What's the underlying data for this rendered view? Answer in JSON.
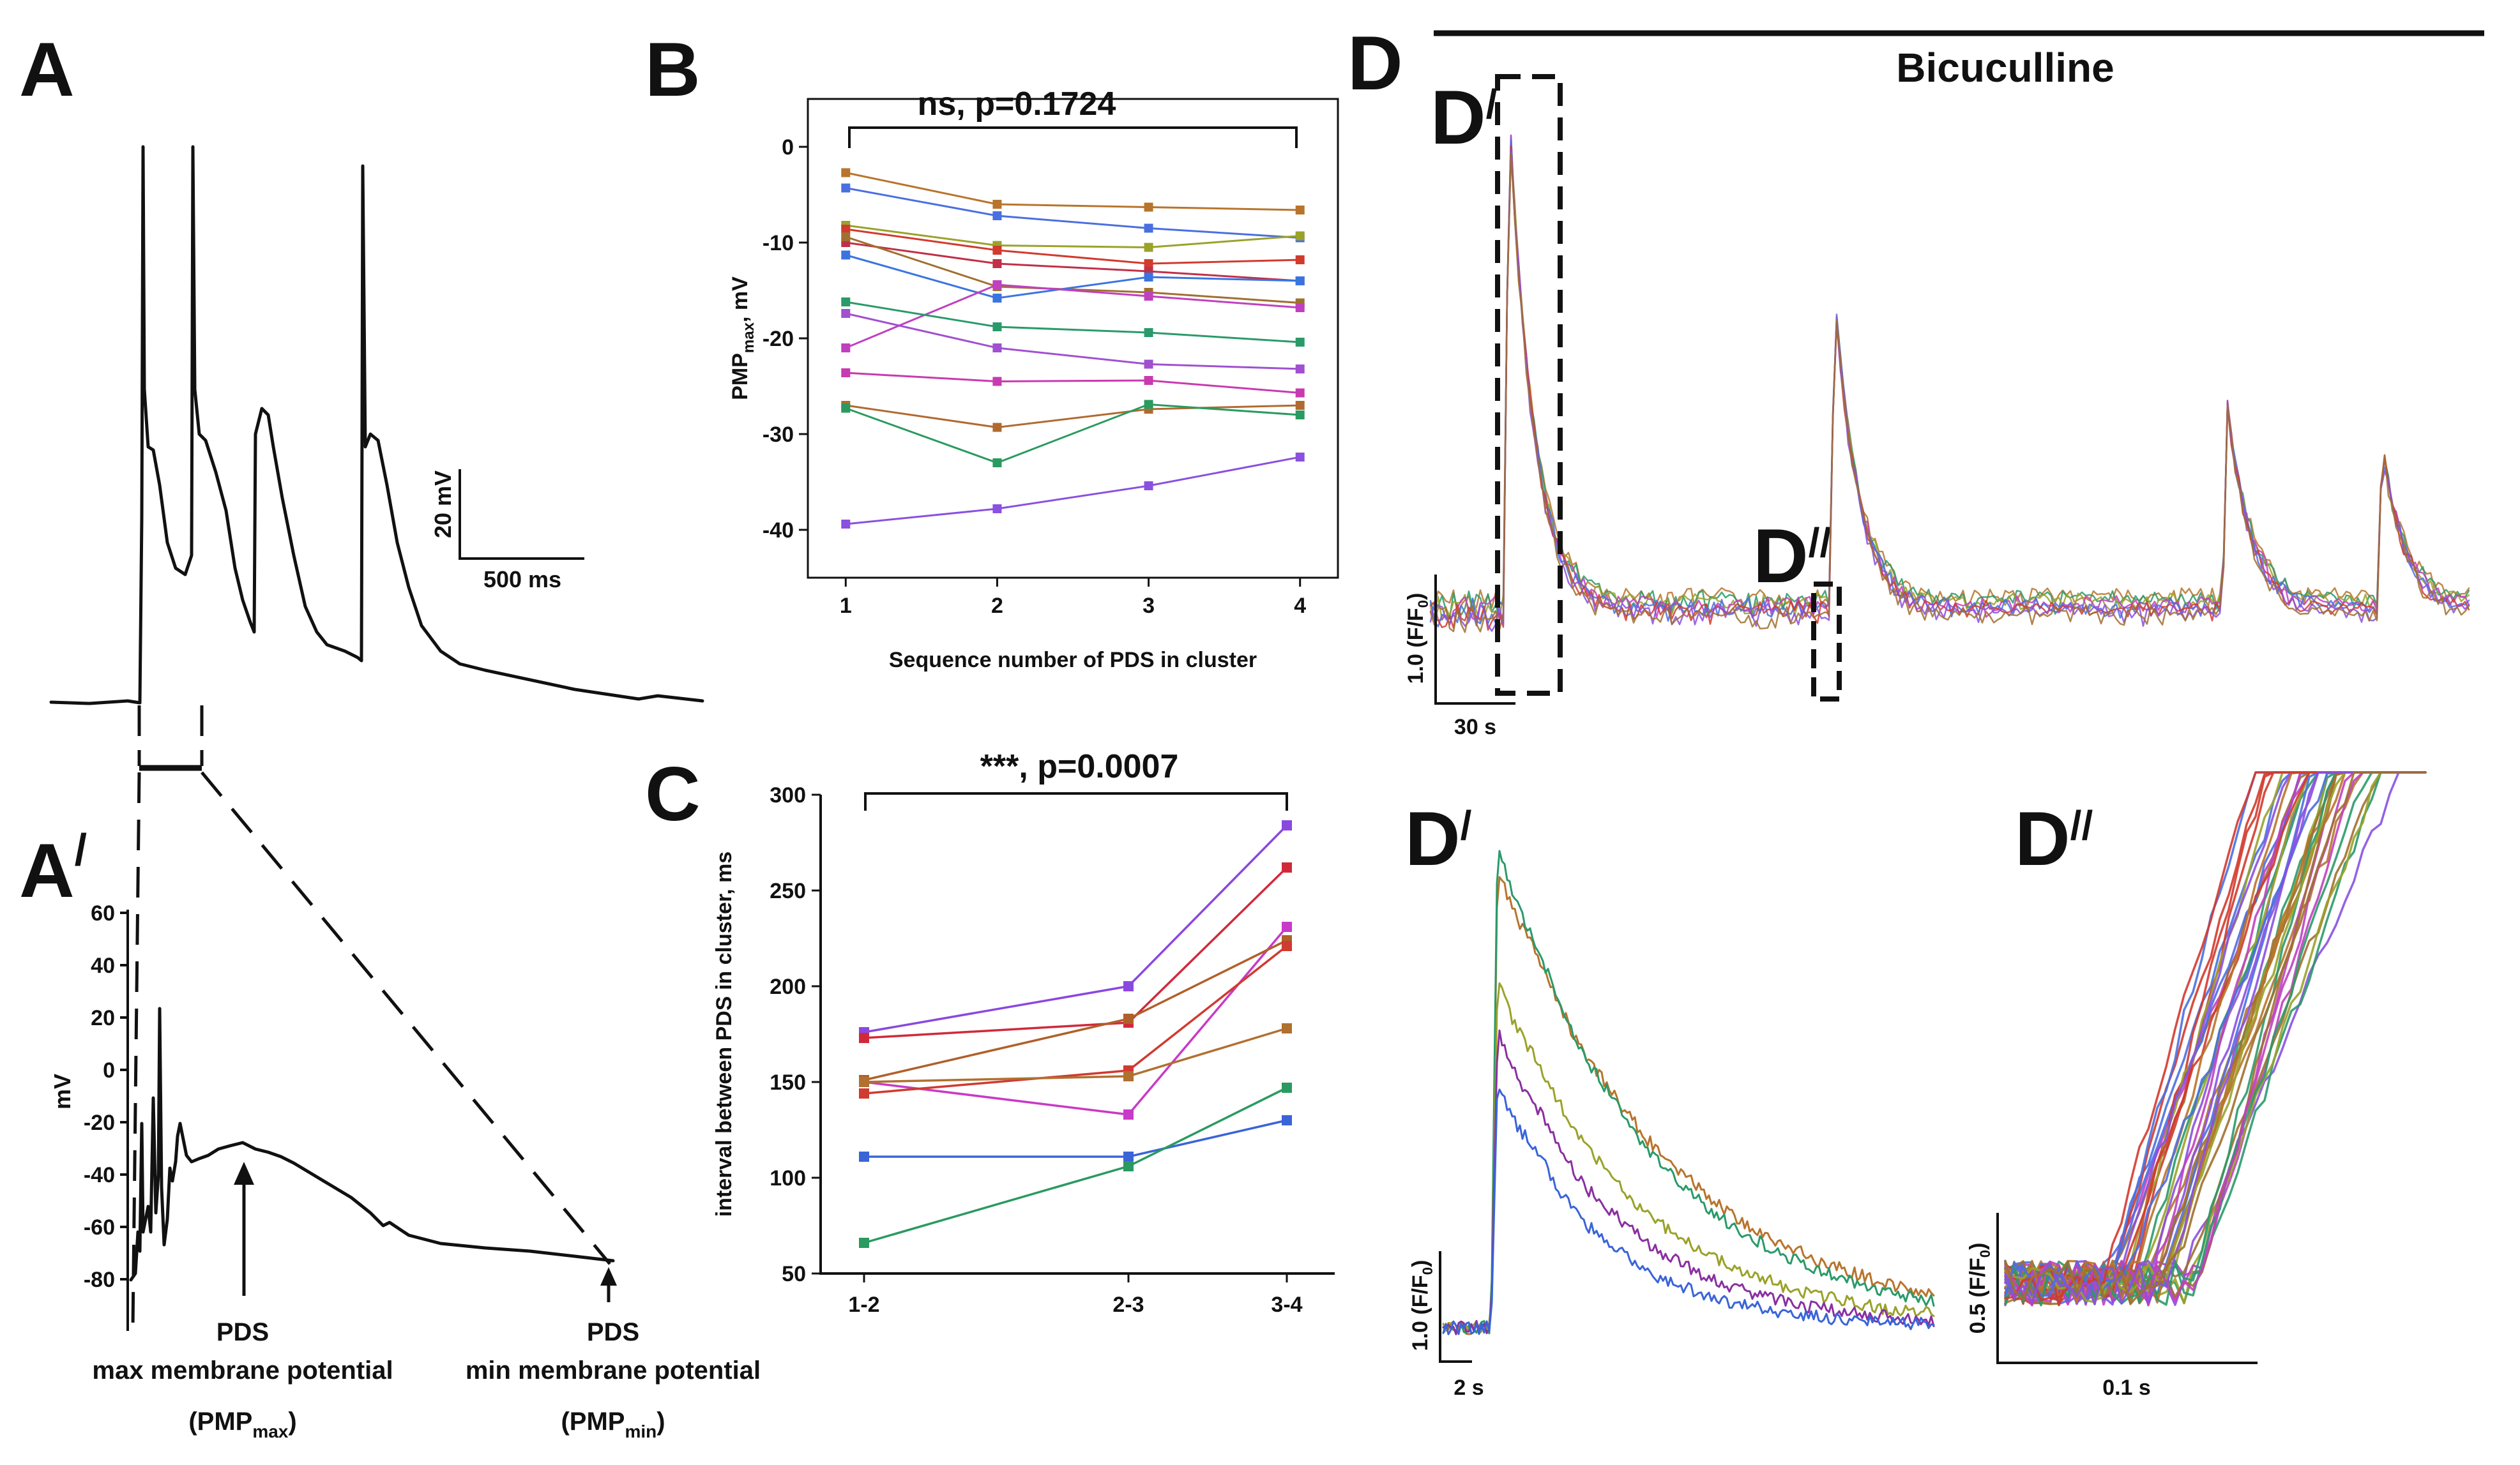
{
  "panels": {
    "A": {
      "letter": "A",
      "scalebar_mv": "20 mV",
      "scalebar_ms": "500 ms"
    },
    "A_prime": {
      "letter": "A",
      "prime": "/",
      "ylabel": "mV",
      "yticks": [
        "60",
        "40",
        "20",
        "0",
        "-20",
        "-40",
        "-60",
        "-80"
      ],
      "annot_max_1": "PDS",
      "annot_max_2": "max membrane potential",
      "annot_max_3": "(PMP",
      "annot_max_sub": "max",
      "annot_max_close": ")",
      "annot_min_1": "PDS",
      "annot_min_2": "min membrane potential",
      "annot_min_3": "(PMP",
      "annot_min_sub": "min",
      "annot_min_close": ")"
    },
    "B": {
      "letter": "B",
      "significance": "ns, p=0.1724",
      "ylabel_main": "PMP",
      "ylabel_sub": "max",
      "ylabel_tail": ", mV",
      "xlabel": "Sequence number of PDS in cluster"
    },
    "C": {
      "letter": "C",
      "significance": "***, p=0.0007",
      "ylabel": "interval between PDS in cluster, ms"
    },
    "D": {
      "letter": "D",
      "bar_label": "Bicuculline",
      "inset1_label": "D",
      "inset1_prime": "/",
      "inset2_label": "D",
      "inset2_prime": "//",
      "scale_y": "1.0 (F/F",
      "scale_y_sub": "0",
      "scale_y_close": ")",
      "scale_x": "30 s"
    },
    "D_prime": {
      "letter": "D",
      "prime": "/",
      "scale_y": "1.0 (F/F",
      "scale_y_sub": "0",
      "scale_y_close": ")",
      "scale_x": "2 s"
    },
    "D_double_prime": {
      "letter": "D",
      "prime": "//",
      "scale_y": "0.5 (F/F",
      "scale_y_sub": "0",
      "scale_y_close": ")",
      "scale_x": "0.1 s"
    }
  },
  "chart_data": [
    {
      "id": "B",
      "type": "line",
      "title": "ns, p=0.1724",
      "xlabel": "Sequence number of PDS in cluster",
      "ylabel": "PMPmax, mV",
      "x": [
        1,
        2,
        3,
        4
      ],
      "xlim": [
        0.75,
        4.25
      ],
      "ylim": [
        -45,
        5
      ],
      "yticks": [
        0,
        -10,
        -20,
        -30,
        -40
      ],
      "series": [
        {
          "name": "s1",
          "color": "#b8742c",
          "values": [
            -2.7,
            -6.0,
            -6.3,
            -6.6
          ]
        },
        {
          "name": "s2",
          "color": "#4a6fe0",
          "values": [
            -4.3,
            -7.2,
            -8.5,
            -9.5
          ]
        },
        {
          "name": "s3",
          "color": "#9aa22a",
          "values": [
            -8.2,
            -10.3,
            -10.5,
            -9.3
          ]
        },
        {
          "name": "s4",
          "color": "#d23a2e",
          "values": [
            -8.6,
            -10.8,
            -12.2,
            -11.8
          ]
        },
        {
          "name": "s5",
          "color": "#c03048",
          "values": [
            -10.0,
            -12.2,
            -13.0,
            -14.0
          ]
        },
        {
          "name": "s6",
          "color": "#a07030",
          "values": [
            -9.4,
            -14.6,
            -15.2,
            -16.3
          ]
        },
        {
          "name": "s7",
          "color": "#3a74e0",
          "values": [
            -11.3,
            -15.8,
            -13.6,
            -14.0
          ]
        },
        {
          "name": "s8",
          "color": "#c040c0",
          "values": [
            -21.0,
            -14.4,
            -15.6,
            -16.8
          ]
        },
        {
          "name": "s9",
          "color": "#2a9a6a",
          "values": [
            -16.2,
            -18.8,
            -19.4,
            -20.4
          ]
        },
        {
          "name": "s10",
          "color": "#a050d0",
          "values": [
            -17.4,
            -21.0,
            -22.7,
            -23.2
          ]
        },
        {
          "name": "s11",
          "color": "#c83ab0",
          "values": [
            -23.6,
            -24.5,
            -24.4,
            -25.7
          ]
        },
        {
          "name": "s12",
          "color": "#b06a30",
          "values": [
            -27.0,
            -29.3,
            -27.4,
            -27.0
          ]
        },
        {
          "name": "s13",
          "color": "#2a9a60",
          "values": [
            -27.3,
            -33.0,
            -26.9,
            -28.0
          ]
        },
        {
          "name": "s14",
          "color": "#8a50e0",
          "values": [
            -39.4,
            -37.8,
            -35.4,
            -32.4
          ]
        }
      ]
    },
    {
      "id": "C",
      "type": "line",
      "title": "***, p=0.0007",
      "ylabel": "interval between PDS in cluster, ms",
      "categories": [
        "1-2",
        "2-3",
        "3-4"
      ],
      "ylim": [
        50,
        300
      ],
      "yticks": [
        50,
        100,
        150,
        200,
        250,
        300
      ],
      "series": [
        {
          "name": "c1",
          "color": "#8a48e0",
          "values": [
            176,
            200,
            284
          ]
        },
        {
          "name": "c2",
          "color": "#d02a3a",
          "values": [
            173,
            181,
            262
          ]
        },
        {
          "name": "c3",
          "color": "#c83ac8",
          "values": [
            150,
            133,
            231
          ]
        },
        {
          "name": "c4",
          "color": "#b0602a",
          "values": [
            151,
            183,
            224
          ]
        },
        {
          "name": "c5",
          "color": "#d03a30",
          "values": [
            144,
            156,
            221
          ]
        },
        {
          "name": "c6",
          "color": "#b07030",
          "values": [
            150,
            153,
            178
          ]
        },
        {
          "name": "c7",
          "color": "#3a64d8",
          "values": [
            111,
            111,
            130
          ]
        },
        {
          "name": "c8",
          "color": "#2a9a60",
          "values": [
            66,
            106,
            147
          ]
        }
      ]
    }
  ]
}
